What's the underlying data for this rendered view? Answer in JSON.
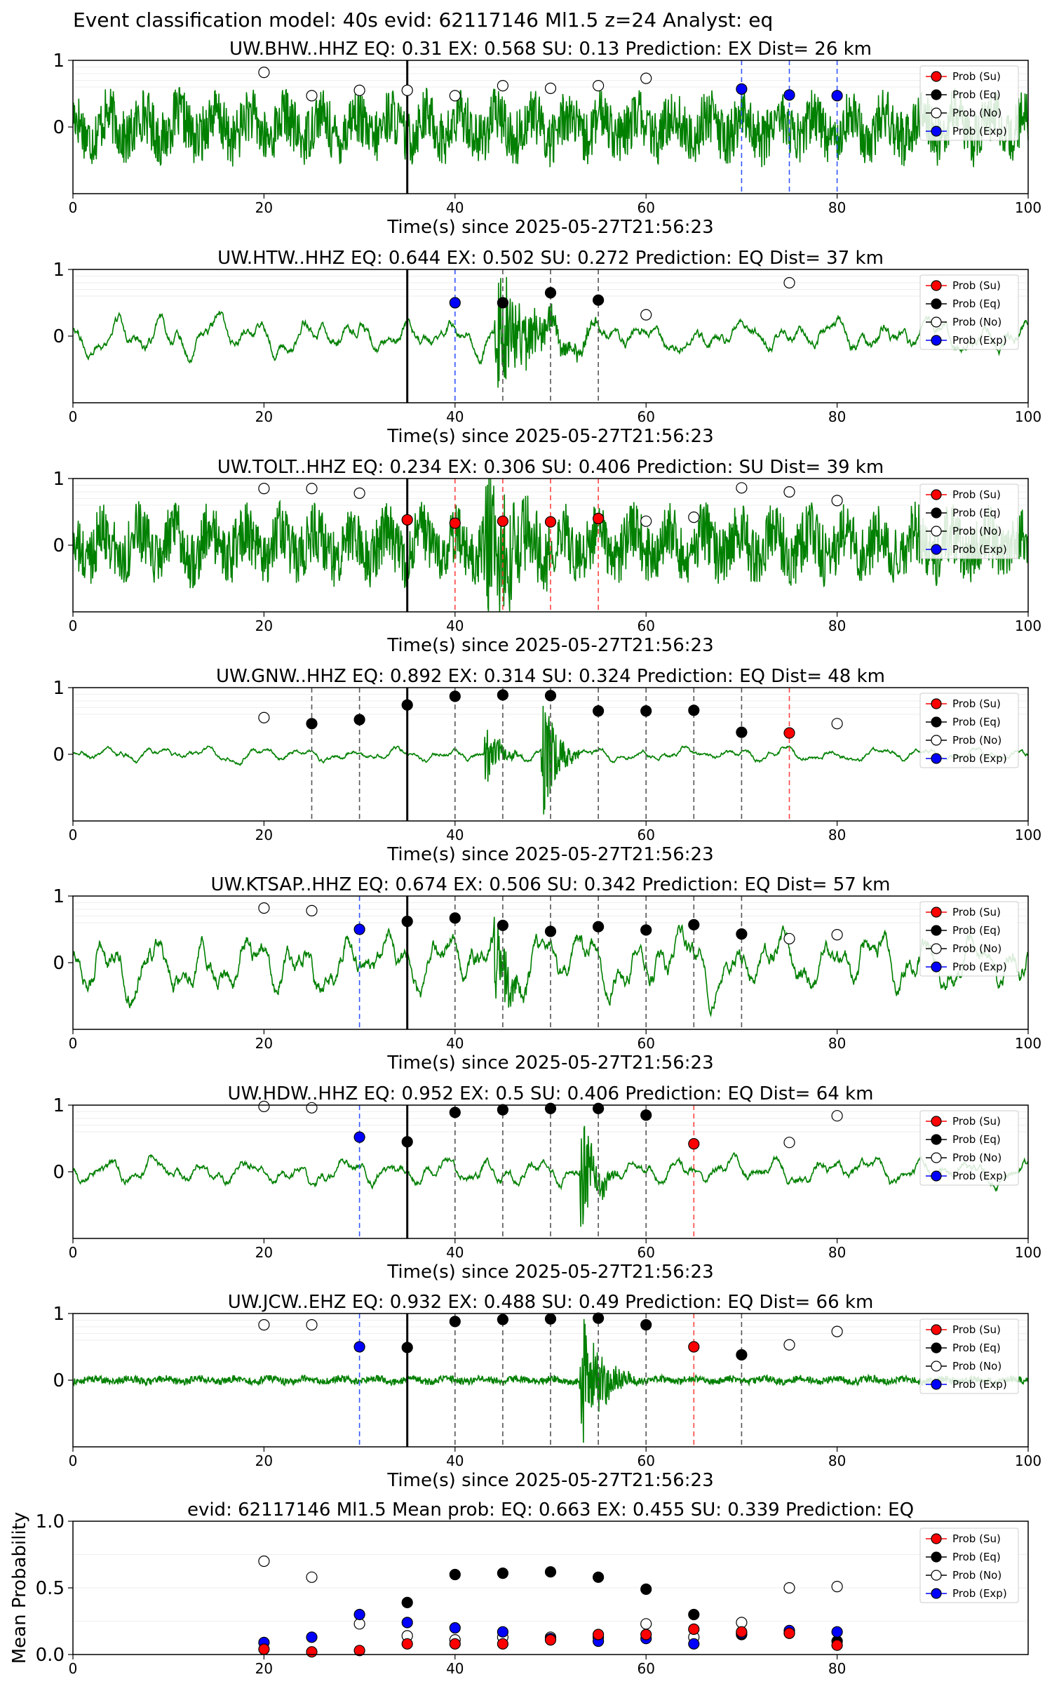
{
  "figure_title": "Event classification model: 40s evid: 62117146 Ml1.5 z=24 Analyst: eq",
  "xlabel": "Time(s) since 2025-05-27T21:56:23",
  "legend": [
    "Prob (Su)",
    "Prob (Eq)",
    "Prob (No)",
    "Prob (Exp)"
  ],
  "colors": {
    "trace": "#008000",
    "su": "#ff0000",
    "eq": "#000000",
    "no": "#ffffff",
    "exp": "#0000ff",
    "su_line": "#ff4444",
    "eq_line": "#555555",
    "exp_line": "#3355ff"
  },
  "chart_data": [
    {
      "type": "line",
      "title": "UW.BHW..HHZ   EQ: 0.31  EX: 0.568  SU: 0.13   Prediction: EX    Dist= 26 km",
      "xlim": [
        0,
        100
      ],
      "ylim": [
        -1,
        1
      ],
      "xticks": [
        0,
        20,
        40,
        60,
        80,
        100
      ],
      "yticks": [
        0,
        1
      ],
      "pick_time": 35,
      "amplitude": 0.55,
      "style": "noisy",
      "bursts": [],
      "points": [
        {
          "x": 20,
          "p": 0.82,
          "c": "no"
        },
        {
          "x": 25,
          "p": 0.47,
          "c": "no"
        },
        {
          "x": 30,
          "p": 0.55,
          "c": "no"
        },
        {
          "x": 35,
          "p": 0.55,
          "c": "no"
        },
        {
          "x": 40,
          "p": 0.47,
          "c": "no"
        },
        {
          "x": 45,
          "p": 0.62,
          "c": "no"
        },
        {
          "x": 50,
          "p": 0.58,
          "c": "no"
        },
        {
          "x": 55,
          "p": 0.62,
          "c": "no"
        },
        {
          "x": 60,
          "p": 0.73,
          "c": "no"
        },
        {
          "x": 70,
          "p": 0.57,
          "c": "exp"
        },
        {
          "x": 75,
          "p": 0.48,
          "c": "exp"
        },
        {
          "x": 80,
          "p": 0.47,
          "c": "exp"
        }
      ]
    },
    {
      "type": "line",
      "title": "UW.HTW..HHZ   EQ: 0.644  EX: 0.502  SU: 0.272   Prediction: EQ    Dist= 37 km",
      "xlim": [
        0,
        100
      ],
      "ylim": [
        -1,
        1
      ],
      "xticks": [
        0,
        20,
        40,
        60,
        80,
        100
      ],
      "yticks": [
        0,
        1
      ],
      "pick_time": 35,
      "amplitude": 0.25,
      "style": "smooth",
      "bursts": [
        {
          "start": 44,
          "end": 55,
          "amp": 0.9
        }
      ],
      "points": [
        {
          "x": 40,
          "p": 0.5,
          "c": "exp"
        },
        {
          "x": 45,
          "p": 0.5,
          "c": "eq"
        },
        {
          "x": 50,
          "p": 0.65,
          "c": "eq"
        },
        {
          "x": 55,
          "p": 0.54,
          "c": "eq"
        },
        {
          "x": 60,
          "p": 0.32,
          "c": "no"
        },
        {
          "x": 75,
          "p": 0.8,
          "c": "no"
        }
      ]
    },
    {
      "type": "line",
      "title": "UW.TOLT..HHZ   EQ: 0.234  EX: 0.306  SU: 0.406   Prediction: SU    Dist= 39 km",
      "xlim": [
        0,
        100
      ],
      "ylim": [
        -1,
        1
      ],
      "xticks": [
        0,
        20,
        40,
        60,
        80,
        100
      ],
      "yticks": [
        0,
        1
      ],
      "pick_time": 35,
      "amplitude": 0.6,
      "style": "noisy",
      "bursts": [
        {
          "start": 43,
          "end": 53,
          "amp": 1.0
        }
      ],
      "points": [
        {
          "x": 20,
          "p": 0.85,
          "c": "no"
        },
        {
          "x": 25,
          "p": 0.85,
          "c": "no"
        },
        {
          "x": 30,
          "p": 0.78,
          "c": "no"
        },
        {
          "x": 35,
          "p": 0.38,
          "c": "su"
        },
        {
          "x": 40,
          "p": 0.33,
          "c": "su"
        },
        {
          "x": 45,
          "p": 0.36,
          "c": "su"
        },
        {
          "x": 50,
          "p": 0.35,
          "c": "su"
        },
        {
          "x": 55,
          "p": 0.4,
          "c": "su"
        },
        {
          "x": 60,
          "p": 0.36,
          "c": "no"
        },
        {
          "x": 65,
          "p": 0.42,
          "c": "no"
        },
        {
          "x": 70,
          "p": 0.86,
          "c": "no"
        },
        {
          "x": 75,
          "p": 0.8,
          "c": "no"
        },
        {
          "x": 80,
          "p": 0.67,
          "c": "no"
        }
      ]
    },
    {
      "type": "line",
      "title": "UW.GNW..HHZ   EQ: 0.892  EX: 0.314  SU: 0.324   Prediction: EQ    Dist= 48 km",
      "xlim": [
        0,
        100
      ],
      "ylim": [
        -1,
        1
      ],
      "xticks": [
        0,
        20,
        40,
        60,
        80,
        100
      ],
      "yticks": [
        0,
        1
      ],
      "pick_time": 35,
      "amplitude": 0.1,
      "style": "smooth",
      "bursts": [
        {
          "start": 43,
          "end": 47,
          "amp": 0.45
        },
        {
          "start": 49,
          "end": 53,
          "amp": 0.95
        }
      ],
      "points": [
        {
          "x": 20,
          "p": 0.55,
          "c": "no"
        },
        {
          "x": 25,
          "p": 0.46,
          "c": "eq"
        },
        {
          "x": 30,
          "p": 0.52,
          "c": "eq"
        },
        {
          "x": 35,
          "p": 0.74,
          "c": "eq"
        },
        {
          "x": 40,
          "p": 0.87,
          "c": "eq"
        },
        {
          "x": 45,
          "p": 0.89,
          "c": "eq"
        },
        {
          "x": 50,
          "p": 0.88,
          "c": "eq"
        },
        {
          "x": 55,
          "p": 0.65,
          "c": "eq"
        },
        {
          "x": 60,
          "p": 0.65,
          "c": "eq"
        },
        {
          "x": 65,
          "p": 0.66,
          "c": "eq"
        },
        {
          "x": 70,
          "p": 0.33,
          "c": "eq"
        },
        {
          "x": 75,
          "p": 0.32,
          "c": "su"
        },
        {
          "x": 80,
          "p": 0.46,
          "c": "no"
        }
      ]
    },
    {
      "type": "line",
      "title": "UW.KTSAP..HHZ   EQ: 0.674  EX: 0.506  SU: 0.342   Prediction: EQ    Dist= 57 km",
      "xlim": [
        0,
        100
      ],
      "ylim": [
        -1,
        1
      ],
      "xticks": [
        0,
        20,
        40,
        60,
        80,
        100
      ],
      "yticks": [
        0,
        1
      ],
      "pick_time": 35,
      "amplitude": 0.45,
      "style": "smooth",
      "bursts": [
        {
          "start": 44,
          "end": 48,
          "amp": 0.8
        }
      ],
      "points": [
        {
          "x": 20,
          "p": 0.82,
          "c": "no"
        },
        {
          "x": 25,
          "p": 0.78,
          "c": "no"
        },
        {
          "x": 30,
          "p": 0.5,
          "c": "exp"
        },
        {
          "x": 35,
          "p": 0.62,
          "c": "eq"
        },
        {
          "x": 40,
          "p": 0.67,
          "c": "eq"
        },
        {
          "x": 45,
          "p": 0.56,
          "c": "eq"
        },
        {
          "x": 50,
          "p": 0.47,
          "c": "eq"
        },
        {
          "x": 55,
          "p": 0.54,
          "c": "eq"
        },
        {
          "x": 60,
          "p": 0.49,
          "c": "eq"
        },
        {
          "x": 65,
          "p": 0.57,
          "c": "eq"
        },
        {
          "x": 70,
          "p": 0.43,
          "c": "eq"
        },
        {
          "x": 75,
          "p": 0.36,
          "c": "no"
        },
        {
          "x": 80,
          "p": 0.42,
          "c": "no"
        }
      ]
    },
    {
      "type": "line",
      "title": "UW.HDW..HHZ   EQ: 0.952  EX: 0.5  SU: 0.406   Prediction: EQ    Dist= 64 km",
      "xlim": [
        0,
        100
      ],
      "ylim": [
        -1,
        1
      ],
      "xticks": [
        0,
        20,
        40,
        60,
        80,
        100
      ],
      "yticks": [
        0,
        1
      ],
      "pick_time": 35,
      "amplitude": 0.2,
      "style": "smooth",
      "bursts": [
        {
          "start": 53,
          "end": 57,
          "amp": 0.9
        }
      ],
      "points": [
        {
          "x": 20,
          "p": 0.98,
          "c": "no"
        },
        {
          "x": 25,
          "p": 0.96,
          "c": "no"
        },
        {
          "x": 30,
          "p": 0.52,
          "c": "exp"
        },
        {
          "x": 35,
          "p": 0.45,
          "c": "eq"
        },
        {
          "x": 40,
          "p": 0.89,
          "c": "eq"
        },
        {
          "x": 45,
          "p": 0.93,
          "c": "eq"
        },
        {
          "x": 50,
          "p": 0.95,
          "c": "eq"
        },
        {
          "x": 55,
          "p": 0.95,
          "c": "eq"
        },
        {
          "x": 60,
          "p": 0.85,
          "c": "eq"
        },
        {
          "x": 65,
          "p": 0.42,
          "c": "su"
        },
        {
          "x": 75,
          "p": 0.44,
          "c": "no"
        },
        {
          "x": 80,
          "p": 0.84,
          "c": "no"
        }
      ]
    },
    {
      "type": "line",
      "title": "UW.JCW..EHZ   EQ: 0.932  EX: 0.488  SU: 0.49   Prediction: EQ    Dist= 66 km",
      "xlim": [
        0,
        100
      ],
      "ylim": [
        -1,
        1
      ],
      "xticks": [
        0,
        20,
        40,
        60,
        80,
        100
      ],
      "yticks": [
        0,
        1
      ],
      "pick_time": 35,
      "amplitude": 0.07,
      "style": "noisy",
      "bursts": [
        {
          "start": 53,
          "end": 59,
          "amp": 0.95
        }
      ],
      "points": [
        {
          "x": 20,
          "p": 0.83,
          "c": "no"
        },
        {
          "x": 25,
          "p": 0.83,
          "c": "no"
        },
        {
          "x": 30,
          "p": 0.5,
          "c": "exp"
        },
        {
          "x": 35,
          "p": 0.49,
          "c": "eq"
        },
        {
          "x": 40,
          "p": 0.88,
          "c": "eq"
        },
        {
          "x": 45,
          "p": 0.91,
          "c": "eq"
        },
        {
          "x": 50,
          "p": 0.92,
          "c": "eq"
        },
        {
          "x": 55,
          "p": 0.93,
          "c": "eq"
        },
        {
          "x": 60,
          "p": 0.83,
          "c": "eq"
        },
        {
          "x": 65,
          "p": 0.5,
          "c": "su"
        },
        {
          "x": 70,
          "p": 0.38,
          "c": "eq"
        },
        {
          "x": 75,
          "p": 0.53,
          "c": "no"
        },
        {
          "x": 80,
          "p": 0.73,
          "c": "no"
        }
      ]
    },
    {
      "type": "scatter",
      "title": "evid: 62117146  Ml1.5   Mean prob:   EQ: 0.663  EX: 0.455  SU: 0.339   Prediction: EQ",
      "ylabel": "Mean Probability",
      "xlim": [
        0,
        100
      ],
      "ylim": [
        0,
        1
      ],
      "xticks": [
        0,
        20,
        40,
        60,
        80
      ],
      "yticks": [
        0,
        0.5,
        1
      ],
      "ytick_labels": [
        "0.0",
        "0.5",
        "1.0"
      ],
      "x": [
        20,
        25,
        30,
        35,
        40,
        45,
        50,
        55,
        60,
        65,
        70,
        75,
        80
      ],
      "series": [
        {
          "name": "Prob (No)",
          "c": "no",
          "values": [
            0.7,
            0.58,
            0.23,
            0.14,
            0.11,
            0.13,
            0.13,
            0.13,
            0.23,
            0.13,
            0.24,
            0.5,
            0.51
          ]
        },
        {
          "name": "Prob (Eq)",
          "c": "eq",
          "values": [
            null,
            null,
            null,
            0.39,
            0.6,
            0.61,
            0.62,
            0.58,
            0.49,
            0.3,
            0.15,
            0.16,
            0.1
          ]
        },
        {
          "name": "Prob (Exp)",
          "c": "exp",
          "values": [
            0.09,
            0.13,
            0.3,
            0.24,
            0.2,
            0.17,
            0.12,
            0.1,
            0.12,
            0.08,
            0.16,
            0.18,
            0.17
          ]
        },
        {
          "name": "Prob (Su)",
          "c": "su",
          "values": [
            0.04,
            0.02,
            0.03,
            0.08,
            0.08,
            0.08,
            0.11,
            0.15,
            0.15,
            0.19,
            0.17,
            0.16,
            0.07
          ]
        }
      ]
    }
  ]
}
